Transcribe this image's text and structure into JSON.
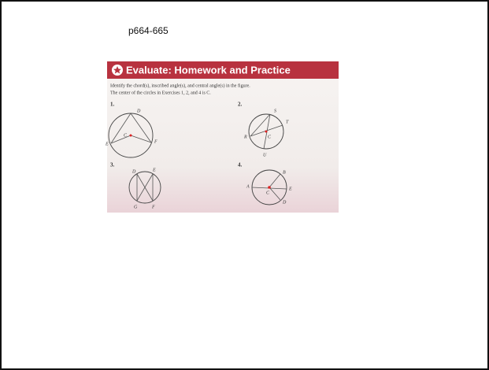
{
  "header": {
    "title": "p664-665"
  },
  "section": {
    "title": "Evaluate: Homework and Practice",
    "instructions": [
      "Identify the chord(s), inscribed angle(s), and central angle(s) in the figure.",
      "The center of the circles in Exercises 1, 2, and 4 is C."
    ]
  },
  "exercises": [
    {
      "number": "1.",
      "points": [
        "D",
        "C",
        "E",
        "F"
      ]
    },
    {
      "number": "2.",
      "points": [
        "S",
        "T",
        "R",
        "C",
        "U"
      ]
    },
    {
      "number": "3.",
      "points": [
        "D",
        "E",
        "G",
        "F"
      ]
    },
    {
      "number": "4.",
      "points": [
        "B",
        "A",
        "C",
        "E",
        "D"
      ]
    }
  ]
}
